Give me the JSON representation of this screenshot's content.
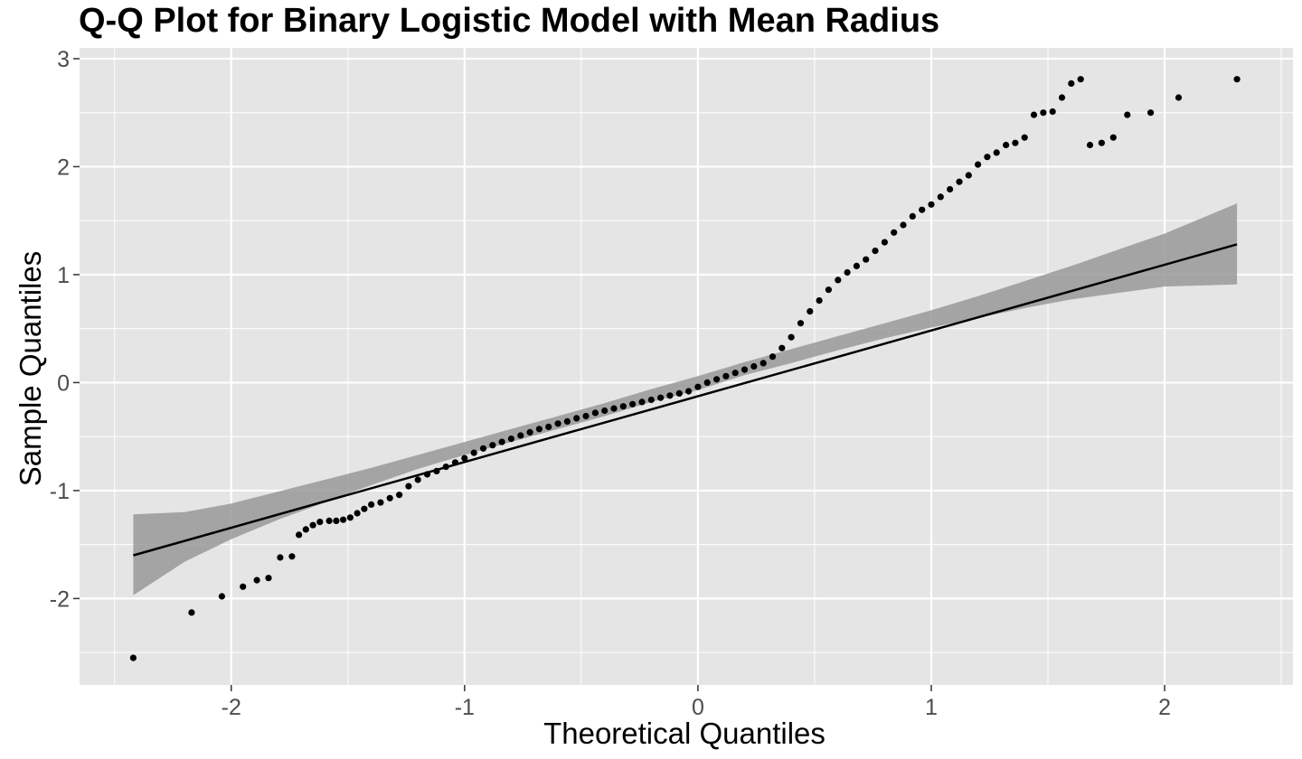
{
  "chart_data": {
    "type": "scatter",
    "title": "Q-Q Plot for Binary Logistic Model with Mean Radius",
    "xlabel": "Theoretical Quantiles",
    "ylabel": "Sample Quantiles",
    "xlim": [
      -2.65,
      2.55
    ],
    "ylim": [
      -2.8,
      3.1
    ],
    "x_ticks": [
      -2,
      -1,
      0,
      1,
      2
    ],
    "x_tick_labels": [
      "-2",
      "-1",
      "0",
      "1",
      "2"
    ],
    "y_ticks": [
      -2,
      -1,
      0,
      1,
      2,
      3
    ],
    "y_tick_labels": [
      "-2",
      "-1",
      "0",
      "1",
      "2",
      "3"
    ],
    "grid": true,
    "colors": {
      "panel": "#e5e5e5",
      "grid": "#ffffff",
      "points": "#000000",
      "line": "#000000",
      "band": "#999999"
    },
    "reference_line": {
      "x": [
        -2.42,
        2.31
      ],
      "y": [
        -1.6,
        1.28
      ]
    },
    "confidence_band": {
      "x": [
        -2.42,
        -2.2,
        -2.0,
        -1.8,
        -1.6,
        -1.4,
        -1.2,
        -1.0,
        -0.8,
        -0.6,
        -0.4,
        -0.2,
        0.0,
        0.2,
        0.4,
        0.6,
        0.8,
        1.0,
        1.2,
        1.4,
        1.6,
        1.8,
        2.0,
        2.31
      ],
      "lower": [
        -1.97,
        -1.66,
        -1.45,
        -1.27,
        -1.11,
        -0.95,
        -0.8,
        -0.67,
        -0.55,
        -0.43,
        -0.31,
        -0.18,
        -0.07,
        0.07,
        0.18,
        0.3,
        0.41,
        0.51,
        0.6,
        0.69,
        0.77,
        0.83,
        0.89,
        0.91
      ],
      "upper": [
        -1.22,
        -1.2,
        -1.12,
        -1.01,
        -0.9,
        -0.79,
        -0.67,
        -0.55,
        -0.43,
        -0.31,
        -0.19,
        -0.06,
        0.06,
        0.19,
        0.31,
        0.43,
        0.55,
        0.67,
        0.8,
        0.94,
        1.08,
        1.23,
        1.38,
        1.66
      ]
    },
    "points": {
      "x": [
        -2.42,
        -2.17,
        -2.04,
        -1.95,
        -1.89,
        -1.84,
        -1.79,
        -1.74,
        -1.71,
        -1.68,
        -1.65,
        -1.62,
        -1.58,
        -1.55,
        -1.52,
        -1.49,
        -1.46,
        -1.43,
        -1.4,
        -1.36,
        -1.32,
        -1.28,
        -1.24,
        -1.2,
        -1.16,
        -1.12,
        -1.08,
        -1.04,
        -1.0,
        -0.96,
        -0.92,
        -0.88,
        -0.84,
        -0.8,
        -0.76,
        -0.72,
        -0.68,
        -0.64,
        -0.6,
        -0.56,
        -0.52,
        -0.48,
        -0.44,
        -0.4,
        -0.36,
        -0.32,
        -0.28,
        -0.24,
        -0.2,
        -0.16,
        -0.12,
        -0.08,
        -0.04,
        0.0,
        0.04,
        0.08,
        0.12,
        0.16,
        0.2,
        0.24,
        0.28,
        0.32,
        0.36,
        0.4,
        0.44,
        0.48,
        0.52,
        0.56,
        0.6,
        0.64,
        0.68,
        0.72,
        0.76,
        0.8,
        0.84,
        0.88,
        0.92,
        0.96,
        1.0,
        1.04,
        1.08,
        1.12,
        1.16,
        1.2,
        1.24,
        1.28,
        1.32,
        1.36,
        1.4,
        1.44,
        1.48,
        1.52,
        1.56,
        1.6,
        1.64,
        1.68,
        1.73,
        1.78,
        1.84,
        1.94,
        2.06,
        2.31
      ],
      "y": [
        -2.55,
        -2.13,
        -1.98,
        -1.89,
        -1.83,
        -1.81,
        -1.62,
        -1.61,
        -1.41,
        -1.36,
        -1.32,
        -1.29,
        -1.28,
        -1.28,
        -1.27,
        -1.25,
        -1.21,
        -1.17,
        -1.13,
        -1.11,
        -1.07,
        -1.04,
        -0.96,
        -0.9,
        -0.85,
        -0.82,
        -0.78,
        -0.74,
        -0.7,
        -0.65,
        -0.61,
        -0.58,
        -0.55,
        -0.52,
        -0.49,
        -0.46,
        -0.43,
        -0.41,
        -0.38,
        -0.36,
        -0.33,
        -0.31,
        -0.28,
        -0.26,
        -0.24,
        -0.22,
        -0.2,
        -0.18,
        -0.16,
        -0.14,
        -0.12,
        -0.1,
        -0.08,
        -0.04,
        0.0,
        0.03,
        0.06,
        0.09,
        0.12,
        0.15,
        0.18,
        0.24,
        0.32,
        0.42,
        0.55,
        0.66,
        0.76,
        0.86,
        0.95,
        1.02,
        1.08,
        1.14,
        1.22,
        1.3,
        1.39,
        1.46,
        1.54,
        1.6,
        1.65,
        1.72,
        1.79,
        1.86,
        1.92,
        2.02,
        2.09,
        2.13,
        2.2,
        2.22,
        2.27,
        2.48,
        2.5,
        2.51,
        2.64,
        2.77,
        2.81,
        2.2,
        2.22,
        2.27,
        2.48,
        2.5,
        2.64,
        2.81
      ]
    }
  }
}
